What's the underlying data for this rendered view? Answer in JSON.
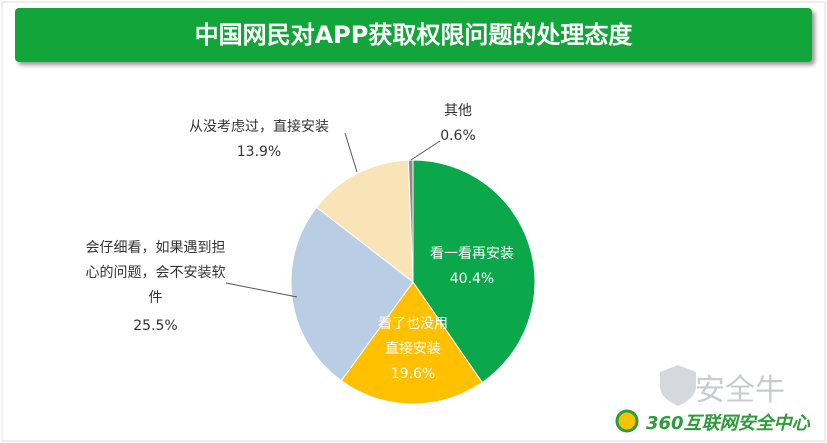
{
  "chart_data": {
    "type": "pie",
    "title": "中国网民对APP获取权限问题的处理态度",
    "categories": [
      "看一看再安装",
      "看了也没用直接安装",
      "会仔细看，如果遇到担心的问题，会不安装软件",
      "从没考虑过，直接安装",
      "其他"
    ],
    "values": [
      40.4,
      19.6,
      25.5,
      13.9,
      0.6
    ],
    "value_labels": [
      "40.4%",
      "19.6%",
      "25.5%",
      "13.9%",
      "0.6%"
    ],
    "colors": [
      "#0aa84a",
      "#ffc000",
      "#b9cde5",
      "#f9e4b7",
      "#8c8c8c"
    ]
  },
  "watermark": "安全牛",
  "brand": "360互联网安全中心"
}
